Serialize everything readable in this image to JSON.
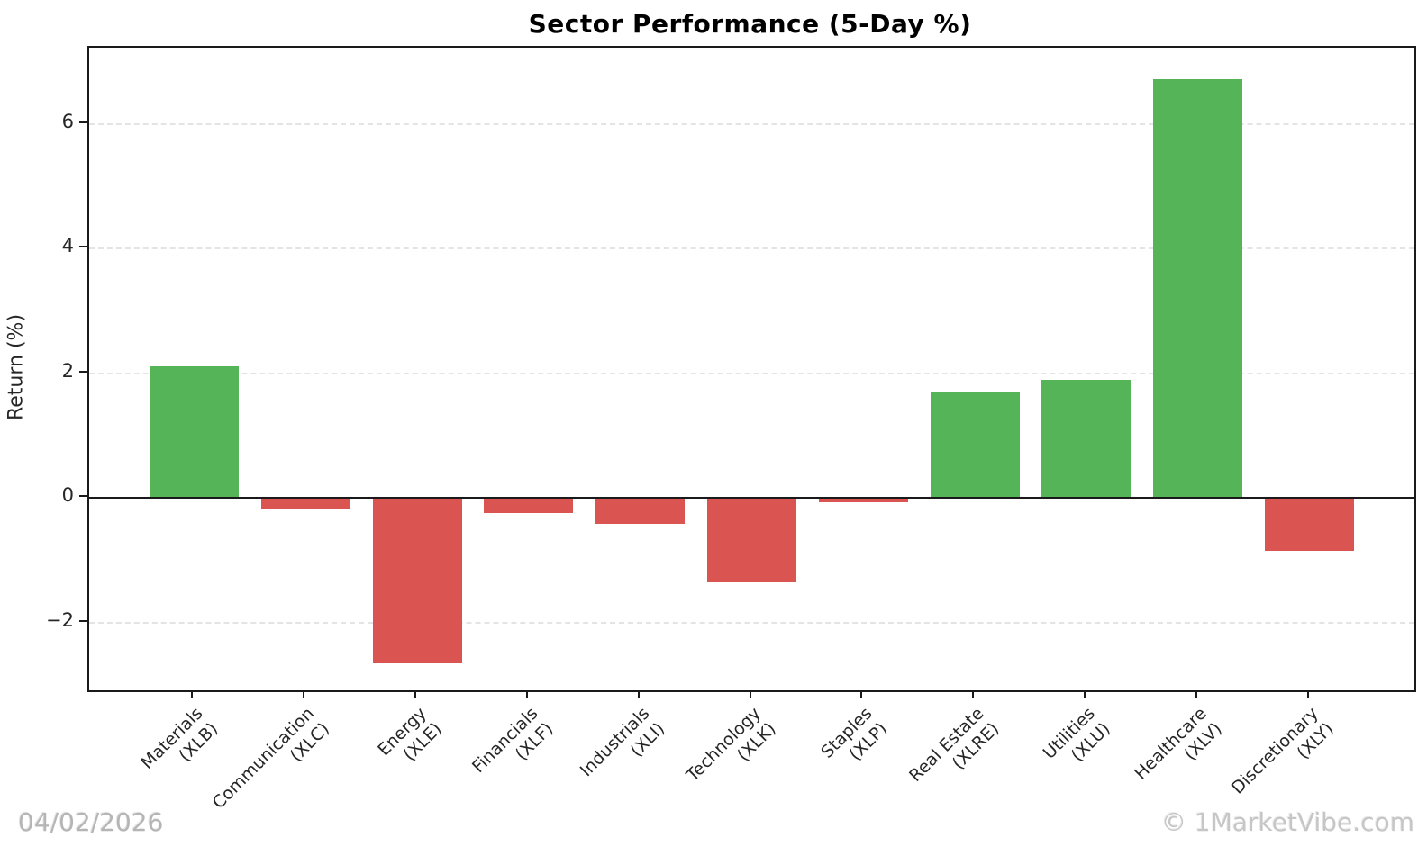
{
  "title": "Sector Performance (5-Day %)",
  "y_axis_label": "Return (%)",
  "footer": {
    "date": "04/02/2026",
    "watermark": "© 1MarketVibe.com"
  },
  "colors": {
    "positive_bar": "#55b458",
    "negative_bar": "#da5452",
    "gridline": "#e4e4e4",
    "spine": "#1a1a1a",
    "tick_text": "#262626",
    "date_text": "#b5b5b5",
    "watermark_text": "#c6c6c6"
  },
  "chart_data": {
    "type": "bar",
    "title": "Sector Performance (5-Day %)",
    "xlabel": "",
    "ylabel": "Return (%)",
    "categories": [
      "Materials (XLB)",
      "Communication (XLC)",
      "Energy (XLE)",
      "Financials (XLF)",
      "Industrials (XLI)",
      "Technology (XLK)",
      "Staples (XLP)",
      "Real Estate (XLRE)",
      "Utilities (XLU)",
      "Healthcare (XLV)",
      "Discretionary (XLY)"
    ],
    "category_lines": [
      {
        "name": "Materials",
        "ticker": "(XLB)"
      },
      {
        "name": "Communication",
        "ticker": "(XLC)"
      },
      {
        "name": "Energy",
        "ticker": "(XLE)"
      },
      {
        "name": "Financials",
        "ticker": "(XLF)"
      },
      {
        "name": "Industrials",
        "ticker": "(XLI)"
      },
      {
        "name": "Technology",
        "ticker": "(XLK)"
      },
      {
        "name": "Staples",
        "ticker": "(XLP)"
      },
      {
        "name": "Real Estate",
        "ticker": "(XLRE)"
      },
      {
        "name": "Utilities",
        "ticker": "(XLU)"
      },
      {
        "name": "Healthcare",
        "ticker": "(XLV)"
      },
      {
        "name": "Discretionary",
        "ticker": "(XLY)"
      }
    ],
    "values": [
      2.12,
      -0.18,
      -2.65,
      -0.25,
      -0.41,
      -1.35,
      -0.07,
      1.7,
      1.89,
      6.73,
      -0.85
    ],
    "bar_color_rule": "green if value >= 0 else red",
    "yticks": [
      -2,
      0,
      2,
      4,
      6
    ],
    "ytick_labels": [
      "−2",
      "0",
      "2",
      "4",
      "6"
    ],
    "ylim": [
      -3.09,
      7.23
    ],
    "grid": "horizontal dashed at yticks, solid black line at y=0",
    "legend": "none",
    "x_label_rotation_deg": 45
  }
}
